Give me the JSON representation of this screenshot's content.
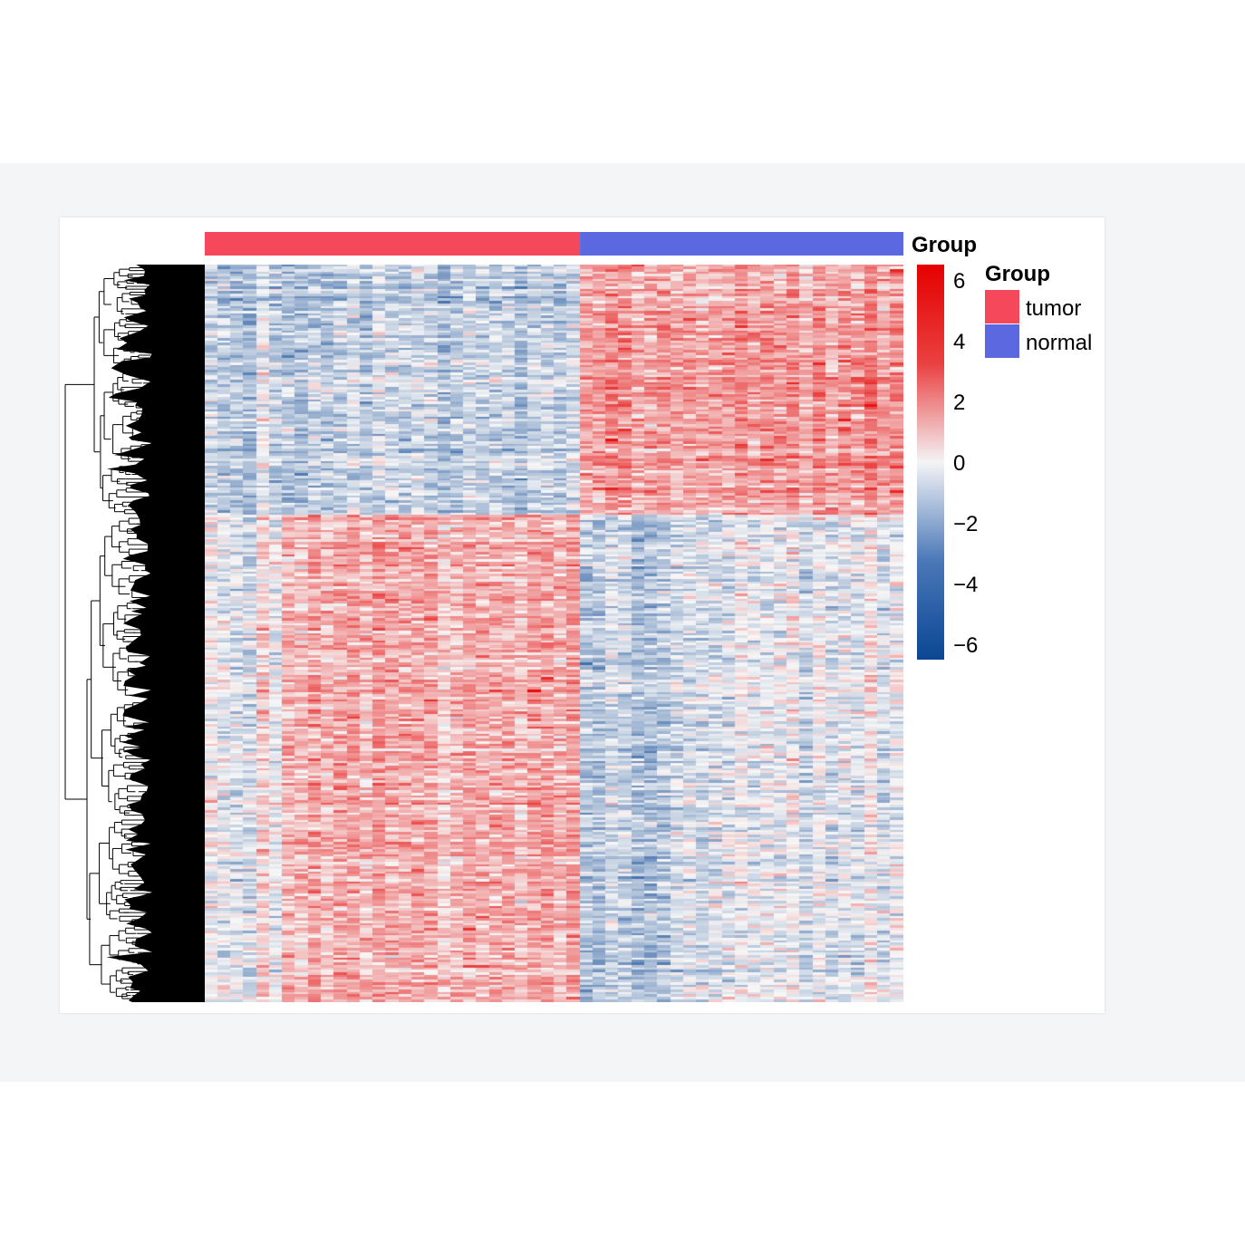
{
  "chart_data": {
    "type": "heatmap",
    "title": "",
    "xlabel": "",
    "ylabel": "",
    "row_dendrogram": true,
    "column_annotation": {
      "name": "Group",
      "groups": [
        {
          "label": "tumor",
          "color": "#f5485a",
          "columns": 29
        },
        {
          "label": "normal",
          "color": "#5b68e0",
          "columns": 25
        }
      ]
    },
    "legend": {
      "title": "Group",
      "items": [
        {
          "label": "tumor",
          "color": "#f5485a"
        },
        {
          "label": "normal",
          "color": "#5b68e0"
        }
      ],
      "placement": "right"
    },
    "colorbar": {
      "range": [
        -6.5,
        6.5
      ],
      "ticks": [
        6,
        4,
        2,
        0,
        -2,
        -4,
        -6
      ],
      "tick_labels": [
        "6",
        "4",
        "2",
        "0",
        "−2",
        "−4",
        "−6"
      ],
      "colors": {
        "low": "#0b4694",
        "mid": "#f7f7f7",
        "high": "#e50000"
      }
    },
    "row_clusters": [
      {
        "rows": "top",
        "tumor_mean": -1.2,
        "normal_mean": 1.9
      },
      {
        "rows": "bottom",
        "tumor_mean": 1.4,
        "normal_mean": -1.1
      }
    ]
  }
}
